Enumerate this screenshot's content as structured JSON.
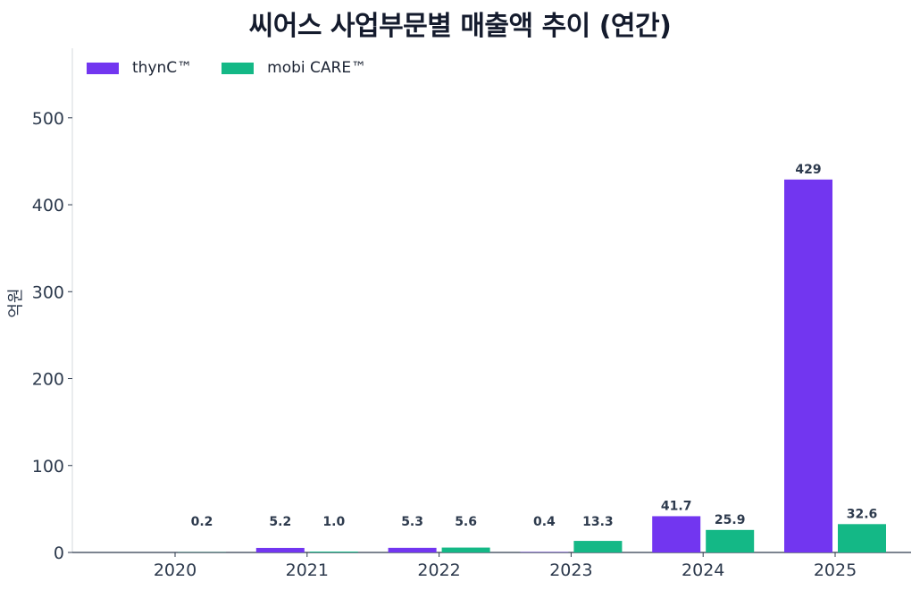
{
  "chart_data": {
    "type": "bar",
    "title": "씨어스 사업부문별 매출액 추이 (연간)",
    "ylabel": "억원",
    "xlabel": "",
    "categories": [
      "2020",
      "2021",
      "2022",
      "2023",
      "2024",
      "2025"
    ],
    "series": [
      {
        "name": "thynC™",
        "color": "#7236f0",
        "values": [
          0,
          5.2,
          5.3,
          0.4,
          41.7,
          429
        ],
        "labels": [
          "",
          "5.2",
          "5.3",
          "0.4",
          "41.7",
          "429"
        ]
      },
      {
        "name": "mobi CARE™",
        "color": "#14b886",
        "values": [
          0.2,
          1.0,
          5.6,
          13.3,
          25.9,
          32.6
        ],
        "labels": [
          "0.2",
          "1.0",
          "5.6",
          "13.3",
          "25.9",
          "32.6"
        ]
      }
    ],
    "ylim": [
      0,
      580
    ],
    "yticks": [
      0,
      100,
      200,
      300,
      400,
      500
    ],
    "grid": false,
    "legend_position": "top-left"
  }
}
